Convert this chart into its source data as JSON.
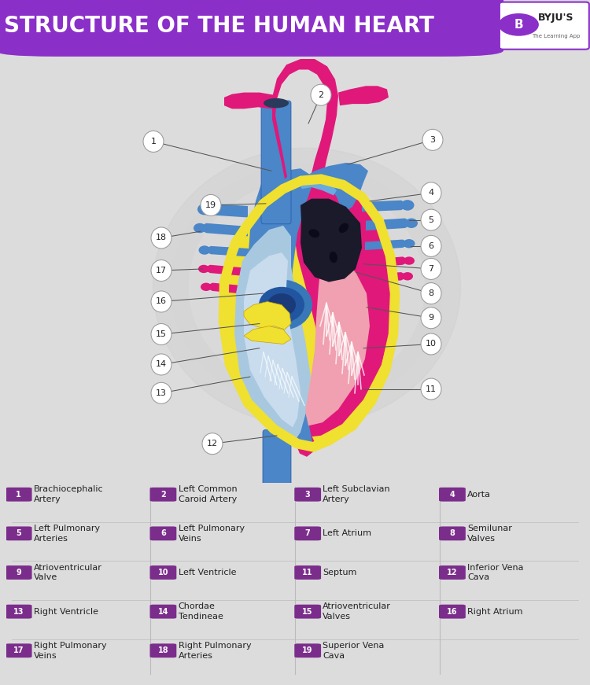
{
  "title": "STRUCTURE OF THE HUMAN HEART",
  "title_bg_color": "#8B2FC9",
  "title_text_color": "#FFFFFF",
  "bg_color": "#DCDCDC",
  "legend_circle_color": "#7B2D8B",
  "legend_text_color": "#222222",
  "magenta": "#E0187A",
  "blue": "#4A86C8",
  "yellow": "#F0E030",
  "light_blue_interior": "#A8C8E0",
  "dark_chamber": "#1A1A2A",
  "pink_chamber": "#F0A0B0",
  "items": [
    {
      "num": 1,
      "label": "Brachiocephalic\nArtery",
      "col": 0,
      "row": 0
    },
    {
      "num": 2,
      "label": "Left Common\nCaroid Artery",
      "col": 1,
      "row": 0
    },
    {
      "num": 3,
      "label": "Left Subclavian\nArtery",
      "col": 2,
      "row": 0
    },
    {
      "num": 4,
      "label": "Aorta",
      "col": 3,
      "row": 0
    },
    {
      "num": 5,
      "label": "Left Pulmonary\nArteries",
      "col": 0,
      "row": 1
    },
    {
      "num": 6,
      "label": "Left Pulmonary\nVeins",
      "col": 1,
      "row": 1
    },
    {
      "num": 7,
      "label": "Left Atrium",
      "col": 2,
      "row": 1
    },
    {
      "num": 8,
      "label": "Semilunar\nValves",
      "col": 3,
      "row": 1
    },
    {
      "num": 9,
      "label": "Atrioventricular\nValve",
      "col": 0,
      "row": 2
    },
    {
      "num": 10,
      "label": "Left Ventricle",
      "col": 1,
      "row": 2
    },
    {
      "num": 11,
      "label": "Septum",
      "col": 2,
      "row": 2
    },
    {
      "num": 12,
      "label": "Inferior Vena\nCava",
      "col": 3,
      "row": 2
    },
    {
      "num": 13,
      "label": "Right Ventricle",
      "col": 0,
      "row": 3
    },
    {
      "num": 14,
      "label": "Chordae\nTendineae",
      "col": 1,
      "row": 3
    },
    {
      "num": 15,
      "label": "Atrioventricular\nValves",
      "col": 2,
      "row": 3
    },
    {
      "num": 16,
      "label": "Right Atrium",
      "col": 3,
      "row": 3
    },
    {
      "num": 17,
      "label": "Right Pulmonary\nVeins",
      "col": 0,
      "row": 4
    },
    {
      "num": 18,
      "label": "Right Pulmonary\nArteries",
      "col": 1,
      "row": 4
    },
    {
      "num": 19,
      "label": "Superior Vena\nCava",
      "col": 2,
      "row": 4
    }
  ]
}
